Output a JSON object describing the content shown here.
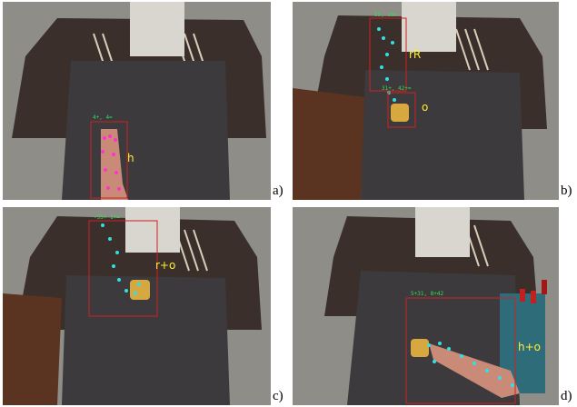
{
  "panels": [
    {
      "label": "a)",
      "tag": "h",
      "coord": "4+, 4="
    },
    {
      "label": "b)",
      "tag": "rR",
      "tag2": "o",
      "coord": "55, 18=",
      "coord2": "31+, 42+="
    },
    {
      "label": "c)",
      "tag": "r+o",
      "coord": "-55+ 1+="
    },
    {
      "label": "d)",
      "tag": "h+o",
      "coord": "5+31, 8+42"
    }
  ],
  "colors": {
    "human_skeleton": "#ff33cc",
    "robot_skeleton": "#33e0e0",
    "bbox": "#cc2222",
    "label_text": "#ffee33",
    "coord_text": "#33dd55",
    "mat": "#3c3a3c",
    "floor": "#8f8d88"
  }
}
